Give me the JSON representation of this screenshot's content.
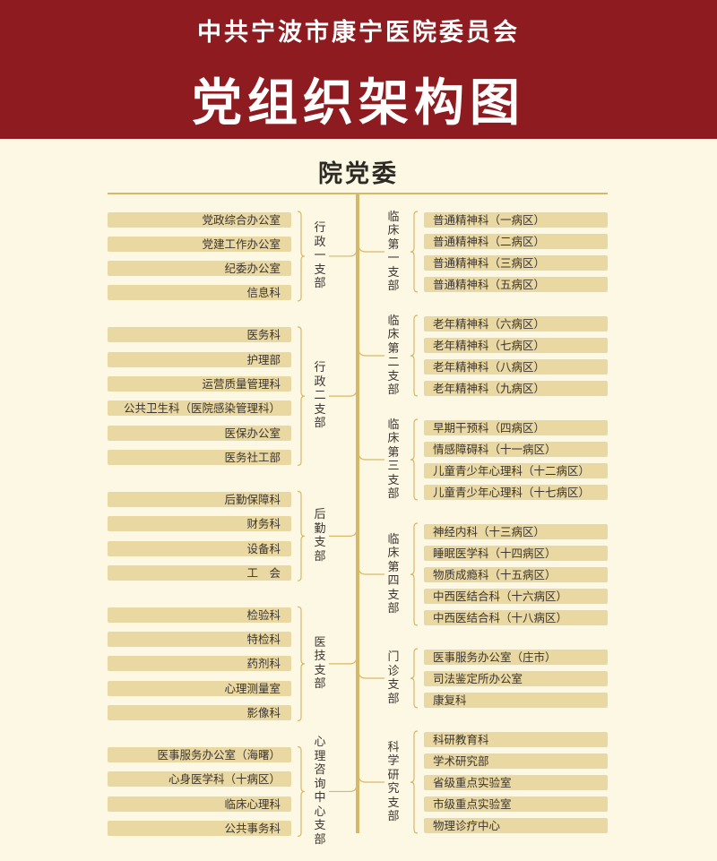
{
  "header": {
    "org": "中共宁波市康宁医院委员会",
    "title": "党组织架构图"
  },
  "root": "院党委",
  "colors": {
    "header_bg": "#8e1b1f",
    "page_bg": "#fdf8e4",
    "box": "#ead8a3",
    "line": "#d7b768"
  },
  "left_branches": [
    {
      "name": "行政一支部",
      "items": [
        "党政综合办公室",
        "党建工作办公室",
        "纪委办公室",
        "信息科"
      ]
    },
    {
      "name": "行政二支部",
      "items": [
        "医务科",
        "护理部",
        "运营质量管理科",
        "公共卫生科（医院感染管理科）",
        "医保办公室",
        "医务社工部"
      ]
    },
    {
      "name": "后勤支部",
      "items": [
        "后勤保障科",
        "财务科",
        "设备科",
        "工　会"
      ]
    },
    {
      "name": "医技支部",
      "items": [
        "检验科",
        "特检科",
        "药剂科",
        "心理测量室",
        "影像科"
      ]
    },
    {
      "name": "心理咨询中心支部",
      "items": [
        "医事服务办公室（海曙）",
        "心身医学科（十病区）",
        "临床心理科",
        "公共事务科"
      ]
    }
  ],
  "right_branches": [
    {
      "name": "临床第一支部",
      "items": [
        "普通精神科（一病区）",
        "普通精神科（二病区）",
        "普通精神科（三病区）",
        "普通精神科（五病区）"
      ]
    },
    {
      "name": "临床第二支部",
      "items": [
        "老年精神科（六病区）",
        "老年精神科（七病区）",
        "老年精神科（八病区）",
        "老年精神科（九病区）"
      ]
    },
    {
      "name": "临床第三支部",
      "items": [
        "早期干预科（四病区）",
        "情感障碍科（十一病区）",
        "儿童青少年心理科（十二病区）",
        "儿童青少年心理科（十七病区）"
      ]
    },
    {
      "name": "临床第四支部",
      "items": [
        "神经内科（十三病区）",
        "睡眠医学科（十四病区）",
        "物质成瘾科（十五病区）",
        "中西医结合科（十六病区）",
        "中西医结合科（十八病区）"
      ]
    },
    {
      "name": "门诊支部",
      "items": [
        "医事服务办公室（庄市）",
        "司法鉴定所办公室",
        "康复科"
      ]
    },
    {
      "name": "科学研究支部",
      "items": [
        "科研教育科",
        "学术研究部",
        "省级重点实验室",
        "市级重点实验室",
        "物理诊疗中心"
      ]
    }
  ]
}
